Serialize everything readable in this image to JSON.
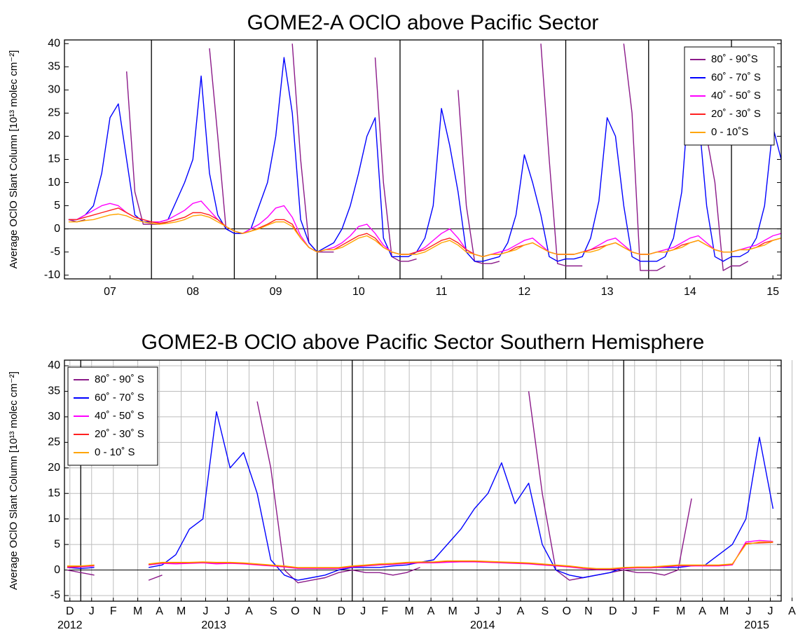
{
  "chart_data": [
    {
      "type": "line",
      "title": "GOME2-A OClO above Pacific Sector",
      "y_label": "Average OClO Slant Column [10¹³ molec cm⁻²]",
      "x": [
        2007,
        2007.1,
        2007.2,
        2007.3,
        2007.4,
        2007.5,
        2007.6,
        2007.7,
        2007.8,
        2007.9,
        2008,
        2008.1,
        2008.2,
        2008.3,
        2008.4,
        2008.5,
        2008.6,
        2008.7,
        2008.8,
        2008.9,
        2009,
        2009.1,
        2009.2,
        2009.3,
        2009.4,
        2009.5,
        2009.6,
        2009.7,
        2009.8,
        2009.9,
        2010,
        2010.1,
        2010.2,
        2010.3,
        2010.4,
        2010.5,
        2010.6,
        2010.7,
        2010.8,
        2010.9,
        2011,
        2011.1,
        2011.2,
        2011.3,
        2011.4,
        2011.5,
        2011.6,
        2011.7,
        2011.8,
        2011.9,
        2012,
        2012.1,
        2012.2,
        2012.3,
        2012.4,
        2012.5,
        2012.6,
        2012.7,
        2012.8,
        2012.9,
        2013,
        2013.1,
        2013.2,
        2013.3,
        2013.4,
        2013.5,
        2013.6,
        2013.7,
        2013.8,
        2013.9,
        2014,
        2014.1,
        2014.2,
        2014.3,
        2014.4,
        2014.5,
        2014.6,
        2014.7,
        2014.8,
        2014.9,
        2015,
        2015.1,
        2015.2,
        2015.3,
        2015.4,
        2015.5,
        2015.6
      ],
      "series": [
        {
          "name": "80˚ - 90˚S",
          "color": "#8b1a89",
          "values": [
            2,
            1.5,
            2,
            null,
            null,
            null,
            null,
            34,
            8,
            1,
            1,
            1,
            1.5,
            null,
            null,
            null,
            null,
            39,
            20,
            0,
            -1,
            -1,
            -0.5,
            null,
            null,
            null,
            null,
            40,
            15,
            -3,
            -5,
            -5,
            -5,
            null,
            null,
            null,
            null,
            37,
            10,
            -6,
            -7,
            -7,
            -6.5,
            null,
            null,
            null,
            null,
            30,
            5,
            -7,
            -7.5,
            -7.5,
            -7,
            null,
            null,
            null,
            null,
            40,
            15,
            -7.5,
            -8,
            -8,
            -8,
            null,
            null,
            null,
            null,
            40,
            25,
            -9,
            -9,
            -9,
            -8,
            null,
            null,
            null,
            null,
            20,
            10,
            -9,
            -8,
            -8,
            -7,
            null,
            null,
            null,
            null
          ]
        },
        {
          "name": "60˚ - 70˚ S",
          "color": "#0000ff",
          "values": [
            2,
            2,
            3,
            5,
            12,
            24,
            27,
            15,
            3,
            1.5,
            1.5,
            1.5,
            2,
            6,
            10,
            15,
            33,
            12,
            3,
            0,
            -1,
            -1,
            0,
            5,
            10,
            20,
            37,
            25,
            2,
            -3,
            -5,
            -4,
            -3,
            0,
            5,
            12,
            20,
            24,
            -2,
            -6,
            -6,
            -6,
            -5,
            -2,
            5,
            26,
            18,
            8,
            -5,
            -7,
            -7,
            -6.5,
            -6,
            -3,
            3,
            16,
            10,
            3,
            -6,
            -7,
            -6.5,
            -6.5,
            -6,
            -2,
            6,
            24,
            20,
            5,
            -6,
            -7,
            -7,
            -7,
            -6,
            -2,
            8,
            32,
            25,
            5,
            -6,
            -7,
            -6,
            -6,
            -5,
            -2,
            5,
            22,
            15
          ]
        },
        {
          "name": "40˚ - 50˚ S",
          "color": "#ff00ff",
          "values": [
            2,
            2,
            3,
            4,
            5,
            5.5,
            5,
            3.5,
            2.5,
            2,
            1.5,
            1.5,
            2,
            3,
            4,
            5.5,
            6,
            4,
            2,
            0.5,
            -0.5,
            -1,
            0,
            1,
            2.5,
            4.5,
            5,
            2.5,
            -1.5,
            -4,
            -5,
            -4.5,
            -4,
            -3,
            -1.5,
            0.5,
            1,
            -1,
            -3.5,
            -5,
            -5.5,
            -5.5,
            -5,
            -4,
            -2.5,
            -1,
            0,
            -2,
            -4.5,
            -5.5,
            -6,
            -5.5,
            -5,
            -4.5,
            -3.5,
            -2.5,
            -2,
            -3.5,
            -5,
            -5.5,
            -5.5,
            -5.5,
            -5,
            -4.5,
            -3.5,
            -2.5,
            -2,
            -3.5,
            -5,
            -5.5,
            -5.5,
            -5,
            -4.5,
            -4,
            -3,
            -2,
            -1.5,
            -3,
            -4.5,
            -5,
            -5,
            -4.5,
            -4,
            -3.5,
            -2.5,
            -1.5,
            -1
          ]
        },
        {
          "name": "20˚ - 30˚ S",
          "color": "#ff2020",
          "values": [
            2,
            2,
            2.5,
            3,
            3.5,
            4,
            4.5,
            3.5,
            2.5,
            2,
            1.5,
            1.2,
            1.5,
            2,
            2.5,
            3.5,
            3.5,
            3,
            2,
            0.5,
            -0.5,
            -1,
            -0.5,
            0.2,
            1,
            2,
            2,
            1,
            -2,
            -4,
            -5,
            -4.5,
            -4.5,
            -3.5,
            -2.5,
            -1.5,
            -1,
            -2,
            -4,
            -5,
            -5.5,
            -5.5,
            -5,
            -4.5,
            -3.5,
            -2.5,
            -2,
            -3,
            -4.5,
            -5.5,
            -6,
            -5.5,
            -5.5,
            -5,
            -4,
            -3.5,
            -3,
            -4,
            -5,
            -5.5,
            -5.5,
            -5.5,
            -5,
            -4.5,
            -4,
            -3.5,
            -3,
            -4,
            -5,
            -5.5,
            -5.5,
            -5,
            -5,
            -4.5,
            -3.5,
            -3,
            -2.5,
            -3.5,
            -4.5,
            -5,
            -5,
            -4.5,
            -4.5,
            -4,
            -3,
            -2.5,
            -2
          ]
        },
        {
          "name": "0 - 10˚S",
          "color": "#ffa500",
          "values": [
            1.5,
            1.5,
            1.8,
            2,
            2.5,
            3,
            3.2,
            2.8,
            2,
            1.5,
            1.2,
            1,
            1.2,
            1.5,
            2,
            2.8,
            3,
            2.5,
            1.5,
            0.5,
            -0.5,
            -1,
            -0.5,
            0,
            0.8,
            1.5,
            1.5,
            0.5,
            -2,
            -4,
            -5,
            -4.5,
            -4.5,
            -4,
            -3,
            -2,
            -1.5,
            -2.5,
            -4,
            -5,
            -5.5,
            -5.5,
            -5.5,
            -5,
            -4,
            -3,
            -2.5,
            -3.5,
            -5,
            -5.5,
            -6,
            -5.5,
            -5.5,
            -5,
            -4.5,
            -3.5,
            -3,
            -4,
            -5,
            -5.5,
            -5.5,
            -5.5,
            -5,
            -5,
            -4.5,
            -3.5,
            -3,
            -4,
            -5,
            -5.5,
            -5.5,
            -5,
            -5,
            -4.5,
            -4,
            -3,
            -2.5,
            -3.5,
            -4.5,
            -5,
            -5,
            -4.5,
            -4.5,
            -4,
            -3.5,
            -2.5,
            -2
          ]
        }
      ],
      "xlim": [
        2006.95,
        2015.6
      ],
      "ylim": [
        -10.8,
        40.8
      ],
      "xticks": [
        {
          "value": 2007.5,
          "label": "07"
        },
        {
          "value": 2008.5,
          "label": "08"
        },
        {
          "value": 2009.5,
          "label": "09"
        },
        {
          "value": 2010.5,
          "label": "10"
        },
        {
          "value": 2011.5,
          "label": "11"
        },
        {
          "value": 2012.5,
          "label": "12"
        },
        {
          "value": 2013.5,
          "label": "13"
        },
        {
          "value": 2014.5,
          "label": "14"
        },
        {
          "value": 2015.5,
          "label": "15"
        }
      ],
      "yticks": [
        -10,
        -5,
        0,
        5,
        10,
        15,
        20,
        25,
        30,
        35,
        40
      ],
      "year_lines": [
        2008,
        2009,
        2010,
        2011,
        2012,
        2013,
        2014,
        2015
      ],
      "grid": false,
      "zero_line": true,
      "legend": "upper right"
    },
    {
      "type": "line",
      "title": "GOME2-B OClO above Pacific Sector Southern Hemisphere",
      "y_label": "Average OClO Slant Column [10¹³ molec cm⁻²]",
      "x": [
        2012.95,
        2013,
        2013.05,
        2013.1,
        2013.15,
        2013.2,
        2013.25,
        2013.3,
        2013.35,
        2013.4,
        2013.45,
        2013.5,
        2013.55,
        2013.6,
        2013.65,
        2013.7,
        2013.75,
        2013.8,
        2013.85,
        2013.9,
        2013.95,
        2014,
        2014.05,
        2014.1,
        2014.15,
        2014.2,
        2014.25,
        2014.3,
        2014.35,
        2014.4,
        2014.45,
        2014.5,
        2014.55,
        2014.6,
        2014.65,
        2014.7,
        2014.75,
        2014.8,
        2014.85,
        2014.9,
        2014.95,
        2015,
        2015.05,
        2015.1,
        2015.15,
        2015.2,
        2015.25,
        2015.3,
        2015.35,
        2015.4,
        2015.45,
        2015.5,
        2015.55
      ],
      "series": [
        {
          "name": "80˚ - 90˚ S",
          "color": "#8b1a89",
          "values": [
            0,
            -0.5,
            -1,
            null,
            null,
            null,
            -2,
            -1,
            null,
            null,
            null,
            null,
            null,
            null,
            33,
            20,
            0,
            -2.5,
            -2,
            -1.5,
            -0.5,
            0,
            -0.5,
            -0.5,
            -1,
            -0.5,
            0.5,
            null,
            null,
            null,
            null,
            null,
            null,
            null,
            35,
            15,
            0,
            -2,
            -1.5,
            -1,
            -0.5,
            0,
            -0.5,
            -0.5,
            -1,
            0,
            14,
            null,
            null,
            null,
            null,
            null,
            null
          ]
        },
        {
          "name": "60˚ - 70˚ S",
          "color": "#0000ff",
          "values": [
            0.5,
            0.3,
            0.5,
            null,
            null,
            null,
            0.5,
            1,
            3,
            8,
            10,
            31,
            20,
            23,
            15,
            2,
            -1,
            -2,
            -1.5,
            -1,
            0,
            0.5,
            0.5,
            0.5,
            0.8,
            1,
            1.5,
            2,
            5,
            8,
            12,
            15,
            21,
            13,
            17,
            5,
            0,
            -1,
            -1.5,
            -1,
            -0.5,
            0.5,
            0.5,
            0.5,
            0.5,
            0.5,
            0.8,
            1,
            3,
            5,
            10,
            26,
            12
          ]
        },
        {
          "name": "40˚ - 50˚ S",
          "color": "#ff00ff",
          "values": [
            0.5,
            0.6,
            0.8,
            null,
            null,
            null,
            1,
            1.3,
            1.2,
            1.3,
            1.4,
            1.2,
            1.3,
            1.2,
            1,
            0.8,
            0.6,
            0.3,
            0.3,
            0.3,
            0.3,
            0.6,
            0.8,
            1,
            1.1,
            1.3,
            1.4,
            1.4,
            1.5,
            1.6,
            1.6,
            1.5,
            1.4,
            1.3,
            1.2,
            1,
            0.8,
            0.6,
            0.3,
            0.1,
            0.1,
            0.3,
            0.4,
            0.4,
            0.6,
            0.8,
            0.8,
            0.8,
            0.8,
            1,
            5.5,
            5.8,
            5.6
          ]
        },
        {
          "name": "20˚ - 30˚ S",
          "color": "#ff2020",
          "values": [
            0.6,
            0.7,
            0.9,
            null,
            null,
            null,
            1.1,
            1.4,
            1.4,
            1.4,
            1.5,
            1.4,
            1.4,
            1.3,
            1.1,
            0.9,
            0.7,
            0.4,
            0.4,
            0.4,
            0.4,
            0.7,
            0.9,
            1.1,
            1.2,
            1.4,
            1.5,
            1.5,
            1.7,
            1.7,
            1.7,
            1.6,
            1.5,
            1.4,
            1.3,
            1.1,
            0.9,
            0.7,
            0.4,
            0.2,
            0.2,
            0.4,
            0.5,
            0.5,
            0.7,
            0.9,
            0.9,
            0.9,
            0.9,
            1.1,
            5.2,
            5.3,
            5.4
          ]
        },
        {
          "name": "0 - 10˚ S",
          "color": "#ffa500",
          "values": [
            0.8,
            0.8,
            1,
            null,
            null,
            null,
            1.2,
            1.5,
            1.5,
            1.5,
            1.6,
            1.5,
            1.5,
            1.4,
            1.2,
            1,
            0.8,
            0.5,
            0.5,
            0.5,
            0.5,
            0.8,
            1,
            1.2,
            1.3,
            1.5,
            1.6,
            1.6,
            1.8,
            1.8,
            1.8,
            1.7,
            1.6,
            1.5,
            1.4,
            1.2,
            1,
            0.8,
            0.5,
            0.3,
            0.3,
            0.5,
            0.6,
            0.6,
            0.8,
            1,
            1,
            1,
            1,
            1.2,
            5,
            5.5,
            5.5
          ]
        }
      ],
      "xlim": [
        2012.94,
        2015.58
      ],
      "ylim": [
        -6.1,
        41.1
      ],
      "xticks": [
        {
          "value": 2012.96,
          "label": "D"
        },
        {
          "value": 2013.04,
          "label": "J"
        },
        {
          "value": 2013.12,
          "label": "F"
        },
        {
          "value": 2013.21,
          "label": "M"
        },
        {
          "value": 2013.29,
          "label": "A"
        },
        {
          "value": 2013.37,
          "label": "M"
        },
        {
          "value": 2013.46,
          "label": "J"
        },
        {
          "value": 2013.54,
          "label": "J"
        },
        {
          "value": 2013.62,
          "label": "A"
        },
        {
          "value": 2013.71,
          "label": "S"
        },
        {
          "value": 2013.79,
          "label": "O"
        },
        {
          "value": 2013.87,
          "label": "N"
        },
        {
          "value": 2013.96,
          "label": "D"
        },
        {
          "value": 2014.04,
          "label": "J"
        },
        {
          "value": 2014.12,
          "label": "F"
        },
        {
          "value": 2014.21,
          "label": "M"
        },
        {
          "value": 2014.29,
          "label": "A"
        },
        {
          "value": 2014.37,
          "label": "M"
        },
        {
          "value": 2014.46,
          "label": "J"
        },
        {
          "value": 2014.54,
          "label": "J"
        },
        {
          "value": 2014.62,
          "label": "A"
        },
        {
          "value": 2014.71,
          "label": "S"
        },
        {
          "value": 2014.79,
          "label": "O"
        },
        {
          "value": 2014.87,
          "label": "N"
        },
        {
          "value": 2014.96,
          "label": "D"
        },
        {
          "value": 2015.04,
          "label": "J"
        },
        {
          "value": 2015.12,
          "label": "F"
        },
        {
          "value": 2015.21,
          "label": "M"
        },
        {
          "value": 2015.29,
          "label": "A"
        },
        {
          "value": 2015.37,
          "label": "M"
        },
        {
          "value": 2015.46,
          "label": "J"
        },
        {
          "value": 2015.54,
          "label": "J"
        },
        {
          "value": 2015.62,
          "label": "A"
        }
      ],
      "year_labels": [
        {
          "value": 2012.96,
          "label": "2012"
        },
        {
          "value": 2013.49,
          "label": "2013"
        },
        {
          "value": 2014.48,
          "label": "2014"
        },
        {
          "value": 2015.49,
          "label": "2015"
        }
      ],
      "yticks": [
        -5,
        0,
        5,
        10,
        15,
        20,
        25,
        30,
        35,
        40
      ],
      "year_lines": [
        2013,
        2014,
        2015
      ],
      "grid": true,
      "zero_line": true,
      "legend": "upper left"
    }
  ]
}
